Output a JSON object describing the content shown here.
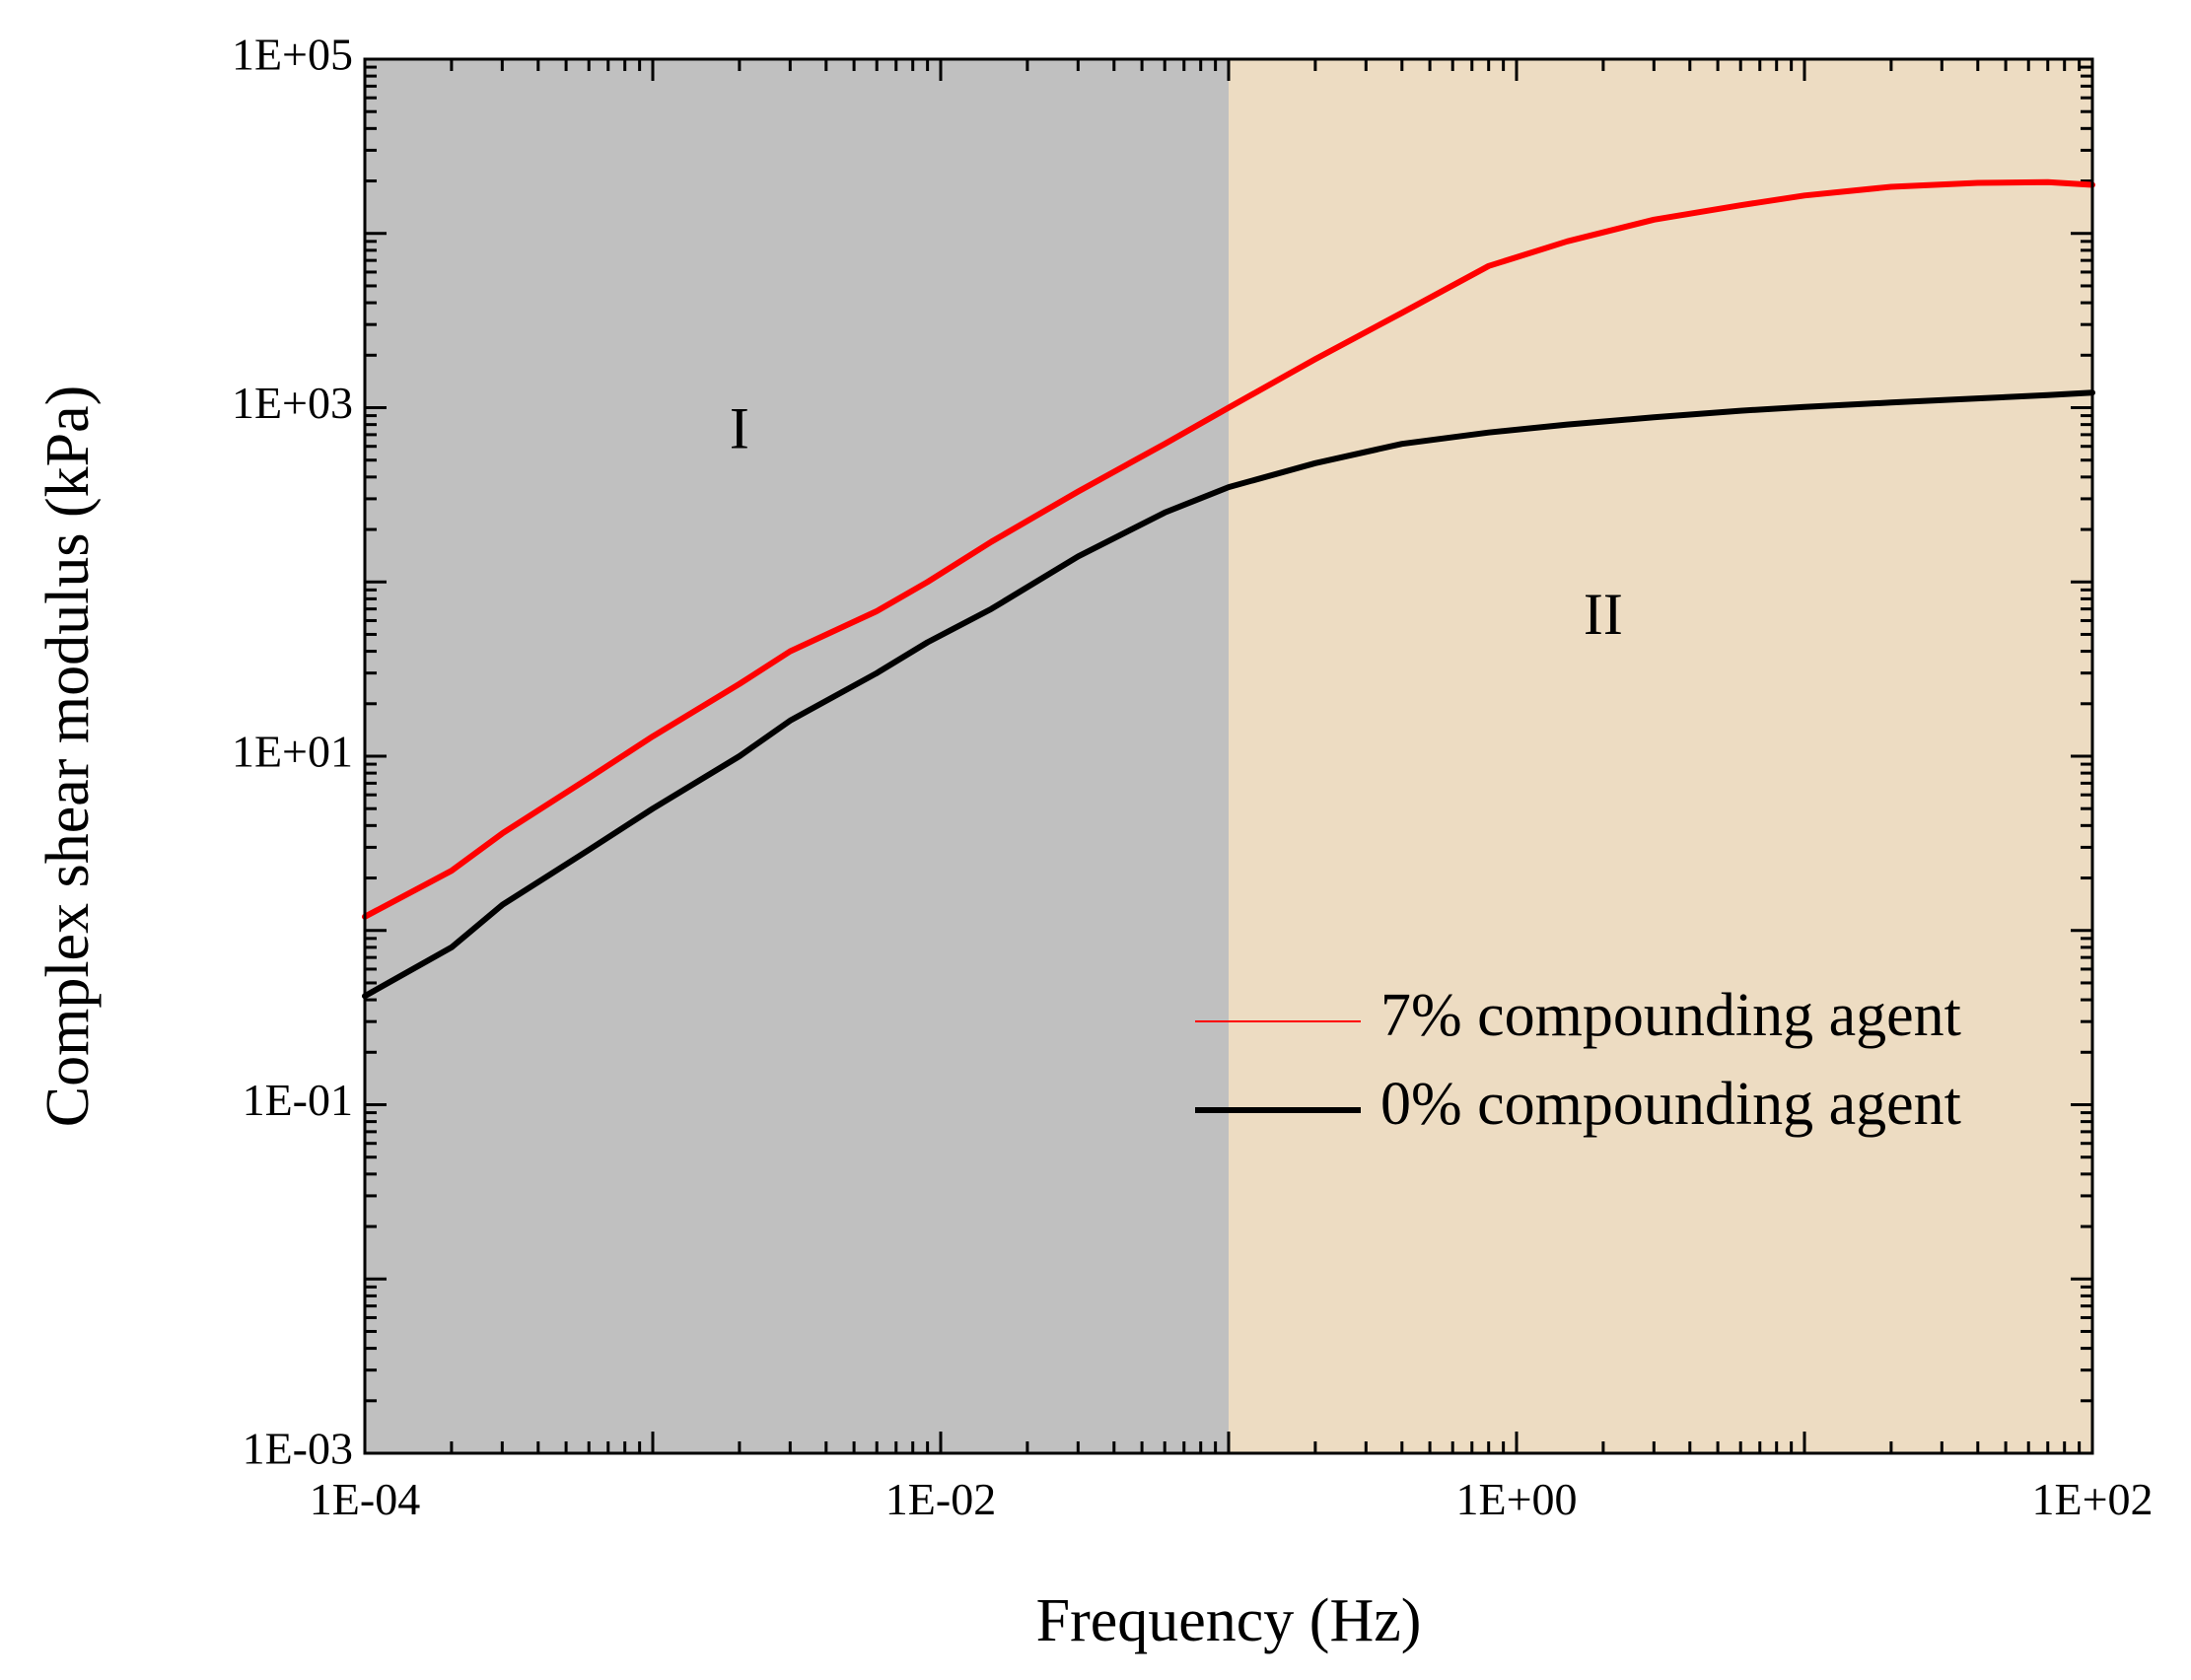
{
  "chart_data": {
    "type": "line",
    "title": "",
    "xlabel": "Frequency  (Hz)",
    "ylabel": "Complex shear modulus (kPa)",
    "x_scale": "log",
    "y_scale": "log",
    "xlim": [
      0.0001,
      100
    ],
    "ylim": [
      0.001,
      100000
    ],
    "x_tick_values": [
      0.0001,
      0.01,
      1,
      100
    ],
    "x_tick_labels": [
      "1E-04",
      "1E-02",
      "1E+00",
      "1E+02"
    ],
    "y_tick_values": [
      0.001,
      0.1,
      10,
      1000,
      100000
    ],
    "y_tick_labels": [
      "1E-03",
      "1E-01",
      "1E+01",
      "1E+03",
      "1E+05"
    ],
    "grid": false,
    "legend_position": "lower-right",
    "regions": [
      {
        "label": "I",
        "x_from": 0.0001,
        "x_to": 0.1,
        "color": "#c0c0c0",
        "label_x": 0.002,
        "label_y": 700
      },
      {
        "label": "II",
        "x_from": 0.1,
        "x_to": 100,
        "color": "#eddcc2",
        "label_x": 2,
        "label_y": 60
      }
    ],
    "series": [
      {
        "name": "7% compounding agent",
        "color": "#ff0000",
        "x": [
          0.0001,
          0.0002,
          0.0003,
          0.0006,
          0.001,
          0.002,
          0.003,
          0.006,
          0.009,
          0.015,
          0.03,
          0.06,
          0.1,
          0.2,
          0.4,
          0.8,
          1.5,
          3,
          6,
          10,
          20,
          40,
          70,
          100
        ],
        "y": [
          1.2,
          2.2,
          3.6,
          7.5,
          13,
          26,
          40,
          68,
          100,
          170,
          330,
          620,
          1000,
          1900,
          3500,
          6500,
          9000,
          12000,
          14500,
          16500,
          18500,
          19500,
          19700,
          19000
        ]
      },
      {
        "name": "0% compounding agent",
        "color": "#000000",
        "x": [
          0.0001,
          0.0002,
          0.0003,
          0.0006,
          0.001,
          0.002,
          0.003,
          0.006,
          0.009,
          0.015,
          0.03,
          0.06,
          0.1,
          0.2,
          0.4,
          0.8,
          1.5,
          3,
          6,
          10,
          20,
          40,
          70,
          100
        ],
        "y": [
          0.42,
          0.8,
          1.4,
          2.9,
          5,
          10,
          16,
          30,
          45,
          70,
          140,
          250,
          350,
          480,
          620,
          720,
          800,
          880,
          960,
          1010,
          1070,
          1130,
          1180,
          1220
        ]
      }
    ]
  }
}
